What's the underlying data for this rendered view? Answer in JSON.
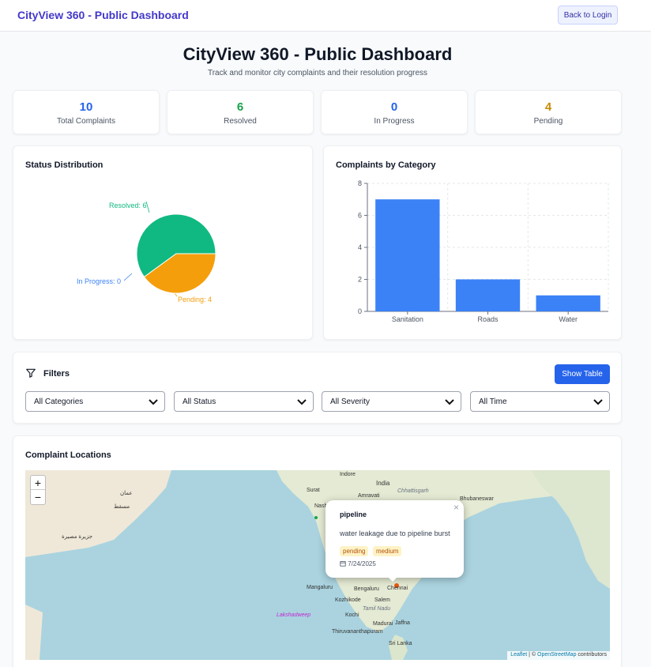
{
  "header": {
    "brand": "CityView 360 - Public Dashboard",
    "back_label": "Back to Login"
  },
  "page": {
    "title": "CityView 360 - Public Dashboard",
    "subtitle": "Track and monitor city complaints and their resolution progress"
  },
  "stats": [
    {
      "value": "10",
      "label": "Total Complaints",
      "color": "#2563eb"
    },
    {
      "value": "6",
      "label": "Resolved",
      "color": "#16a34a"
    },
    {
      "value": "0",
      "label": "In Progress",
      "color": "#2563eb"
    },
    {
      "value": "4",
      "label": "Pending",
      "color": "#ca8a04"
    }
  ],
  "status_chart": {
    "title": "Status Distribution",
    "labels": [
      "Resolved: 6",
      "In Progress: 0",
      "Pending: 4"
    ]
  },
  "category_chart": {
    "title": "Complaints by Category"
  },
  "chart_data": [
    {
      "type": "pie",
      "title": "Status Distribution",
      "categories": [
        "Resolved",
        "In Progress",
        "Pending"
      ],
      "values": [
        6,
        0,
        4
      ],
      "colors": [
        "#10b981",
        "#3b82f6",
        "#f59e0b"
      ]
    },
    {
      "type": "bar",
      "title": "Complaints by Category",
      "categories": [
        "Sanitation",
        "Roads",
        "Water"
      ],
      "values": [
        7,
        2,
        1
      ],
      "ylim": [
        0,
        8
      ],
      "yticks": [
        "0",
        "2",
        "4",
        "6",
        "8"
      ],
      "grid": true,
      "color": "#3b82f6"
    }
  ],
  "filters": {
    "title": "Filters",
    "show_table_label": "Show Table",
    "selects": [
      "All Categories",
      "All Status",
      "All Severity",
      "All Time"
    ]
  },
  "map": {
    "title": "Complaint Locations",
    "zoom_in": "+",
    "zoom_out": "−",
    "popup": {
      "close": "×",
      "title": "pipeline",
      "description": "water leakage due to pipeline burst",
      "tags": [
        "pending",
        "medium"
      ],
      "date": "7/24/2025"
    },
    "attribution": {
      "leaflet": "Leaflet",
      "sep": " | © ",
      "osm": "OpenStreetMap",
      "suffix": " contributors"
    },
    "labels": [
      "Indore",
      "India",
      "Surat",
      "Amravati",
      "Chhattisgarh",
      "Bhubaneswar",
      "Nashik",
      "Mangaluru",
      "Bengaluru",
      "Chennai",
      "Kozhikode",
      "Salem",
      "Tamil Nadu",
      "Kochi",
      "Madurai",
      "Jaffna",
      "Thiruvananthapuram",
      "Sri Lanka",
      "Lakshadweep",
      "عمان",
      "مسقط",
      "جزيرة مصيرة"
    ]
  }
}
